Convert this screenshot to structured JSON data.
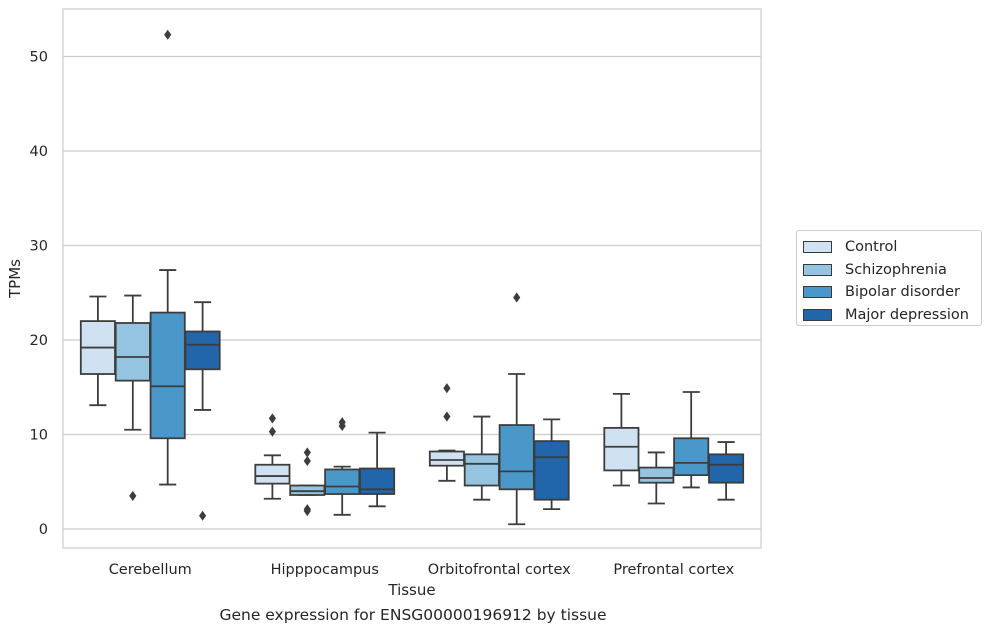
{
  "chart_data": {
    "type": "box",
    "xlabel": "Tissue",
    "ylabel": "TPMs",
    "caption": "Gene expression for ENSG00000196912 by tissue",
    "ylim": [
      -2,
      55
    ],
    "yticks": [
      0,
      10,
      20,
      30,
      40,
      50
    ],
    "grid": "horizontal",
    "legend_position": "right",
    "categories": [
      "Cerebellum",
      "Hipppocampus",
      "Orbitofrontal cortex",
      "Prefrontal cortex"
    ],
    "series": [
      {
        "name": "Control",
        "color": "#d0e1f2",
        "boxes": [
          {
            "whislo": 13.1,
            "q1": 16.4,
            "med": 19.2,
            "q3": 22.0,
            "whishi": 24.6,
            "fliers": []
          },
          {
            "whislo": 3.2,
            "q1": 4.8,
            "med": 5.6,
            "q3": 6.8,
            "whishi": 7.8,
            "fliers": [
              10.3,
              11.7
            ]
          },
          {
            "whislo": 5.1,
            "q1": 6.7,
            "med": 7.3,
            "q3": 8.2,
            "whishi": 8.3,
            "fliers": [
              11.9,
              14.9
            ]
          },
          {
            "whislo": 4.6,
            "q1": 6.2,
            "med": 8.7,
            "q3": 10.7,
            "whishi": 14.3,
            "fliers": []
          }
        ]
      },
      {
        "name": "Schizophrenia",
        "color": "#94c4df",
        "boxes": [
          {
            "whislo": 10.5,
            "q1": 15.7,
            "med": 18.2,
            "q3": 21.8,
            "whishi": 24.7,
            "fliers": [
              3.5
            ]
          },
          {
            "whislo": 3.6,
            "q1": 3.6,
            "med": 4.0,
            "q3": 4.6,
            "whishi": 4.6,
            "fliers": [
              1.9,
              2.1,
              7.2,
              8.1
            ]
          },
          {
            "whislo": 3.1,
            "q1": 4.6,
            "med": 6.9,
            "q3": 7.9,
            "whishi": 11.9,
            "fliers": []
          },
          {
            "whislo": 2.7,
            "q1": 4.9,
            "med": 5.4,
            "q3": 6.5,
            "whishi": 8.1,
            "fliers": []
          }
        ]
      },
      {
        "name": "Bipolar disorder",
        "color": "#4a98c9",
        "boxes": [
          {
            "whislo": 4.7,
            "q1": 9.6,
            "med": 15.1,
            "q3": 22.9,
            "whishi": 27.4,
            "fliers": [
              52.3
            ]
          },
          {
            "whislo": 1.5,
            "q1": 3.7,
            "med": 4.5,
            "q3": 6.3,
            "whishi": 6.6,
            "fliers": [
              10.9,
              11.3
            ]
          },
          {
            "whislo": 0.5,
            "q1": 4.2,
            "med": 6.1,
            "q3": 11.0,
            "whishi": 16.4,
            "fliers": [
              24.5
            ]
          },
          {
            "whislo": 4.4,
            "q1": 5.7,
            "med": 7.0,
            "q3": 9.6,
            "whishi": 14.5,
            "fliers": []
          }
        ]
      },
      {
        "name": "Major depression",
        "color": "#2165ab",
        "boxes": [
          {
            "whislo": 12.6,
            "q1": 16.9,
            "med": 19.5,
            "q3": 20.9,
            "whishi": 24.0,
            "fliers": [
              1.4
            ]
          },
          {
            "whislo": 2.4,
            "q1": 3.7,
            "med": 4.2,
            "q3": 6.4,
            "whishi": 10.2,
            "fliers": []
          },
          {
            "whislo": 2.1,
            "q1": 3.1,
            "med": 7.6,
            "q3": 9.3,
            "whishi": 11.6,
            "fliers": []
          },
          {
            "whislo": 3.1,
            "q1": 4.9,
            "med": 6.8,
            "q3": 7.9,
            "whishi": 9.2,
            "fliers": []
          }
        ]
      }
    ]
  }
}
